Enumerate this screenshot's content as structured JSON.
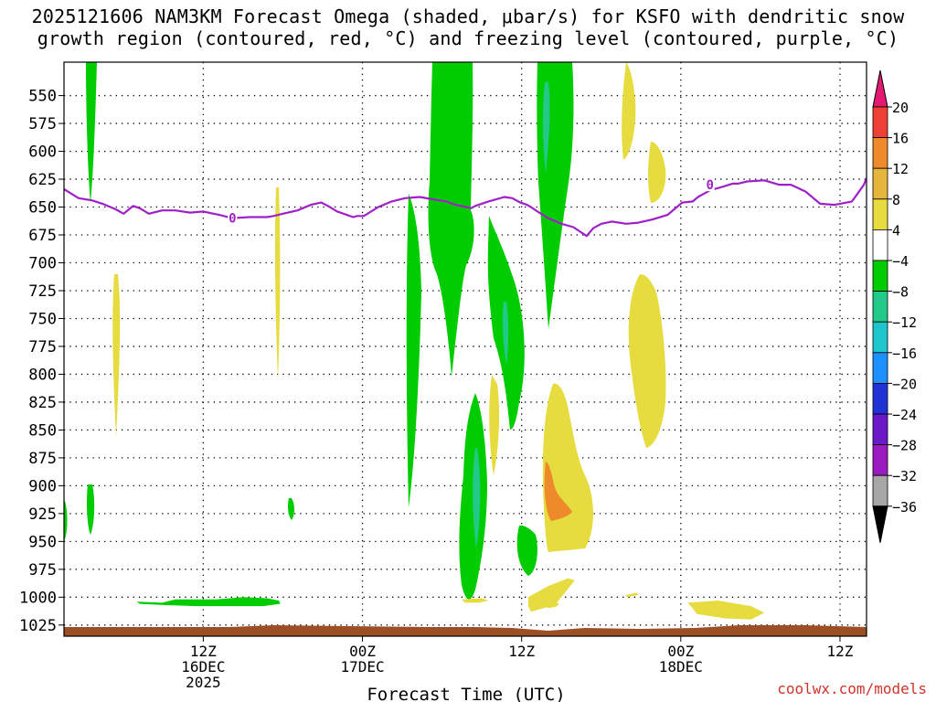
{
  "chart_data": {
    "type": "heatmap",
    "title_line1": "2025121606 NAM3KM Forecast Omega (shaded, μbar/s) for KSFO with dendritic snow",
    "title_line2": "growth region (contoured, red, °C) and freezing level (contoured, purple, °C)",
    "xlabel": "Forecast Time (UTC)",
    "xlim_hours": [
      -4.5,
      56
    ],
    "ylim_hpa": [
      520,
      1035
    ],
    "y_ticks": [
      550,
      575,
      600,
      625,
      650,
      675,
      700,
      725,
      750,
      775,
      800,
      825,
      850,
      875,
      900,
      925,
      950,
      975,
      1000,
      1025
    ],
    "x_ticks": [
      {
        "hour": 6,
        "line1": "12Z",
        "line2": "16DEC",
        "line3": "2025"
      },
      {
        "hour": 18,
        "line1": "00Z",
        "line2": "17DEC",
        "line3": ""
      },
      {
        "hour": 30,
        "line1": "12Z",
        "line2": "",
        "line3": ""
      },
      {
        "hour": 42,
        "line1": "00Z",
        "line2": "18DEC",
        "line3": ""
      },
      {
        "hour": 54,
        "line1": "12Z",
        "line2": "",
        "line3": ""
      }
    ],
    "colorbar": {
      "levels": [
        "20",
        "16",
        "12",
        "8",
        "4",
        "−4",
        "−8",
        "−12",
        "−16",
        "−20",
        "−24",
        "−28",
        "−32",
        "−36"
      ],
      "colors": [
        "#e31a72",
        "#ef4035",
        "#ee8a2b",
        "#e6b53c",
        "#e6dc40",
        "#ffffff",
        "#00cc00",
        "#22c989",
        "#1ec6cc",
        "#1e90ff",
        "#2233d6",
        "#6a18c8",
        "#9a1cc0",
        "#a6a6a6",
        "#000000"
      ]
    },
    "freezing_level": {
      "label": "0",
      "color": "#a020c8",
      "hours": [
        -4.5,
        -3.4,
        -2.4,
        -1.6,
        -0.6,
        0,
        0.4,
        0.7,
        1.2,
        1.9,
        2.9,
        3.9,
        5,
        6,
        7.2,
        8.2,
        9.5,
        10.8,
        11.3,
        12,
        13.1,
        14.1,
        14.9,
        15.4,
        16.1,
        17.3,
        17.6,
        18.1,
        19.2,
        20.2,
        21.2,
        22.3,
        23.3,
        24.3,
        25,
        26.2,
        26.5,
        27.5,
        28.7,
        29.3,
        29.9,
        30.4,
        30.7,
        31.2,
        32,
        33,
        33.9,
        34.9,
        35.4,
        36,
        36.8,
        37.9,
        38.8,
        39.9,
        41,
        41.8,
        42.1,
        42.9,
        43.3,
        44.2,
        45.1,
        45.9,
        46.3,
        47,
        48.3,
        49.4,
        50.3,
        51.4,
        52.5,
        53.6,
        54.9,
        55.2,
        55.8,
        56
      ],
      "hpa": [
        634,
        642,
        644,
        647,
        652,
        656,
        652,
        649,
        651,
        656,
        653,
        653,
        655,
        654,
        657,
        660,
        659,
        659,
        658,
        656,
        653,
        648,
        646,
        649,
        654,
        659,
        658,
        658,
        650,
        645,
        642,
        641,
        643,
        645,
        648,
        651,
        649,
        645,
        641,
        642,
        646,
        648,
        650,
        654,
        660,
        665,
        668,
        676,
        669,
        665,
        663,
        665,
        664,
        661,
        657,
        649,
        646,
        645,
        641,
        635,
        632,
        629,
        629,
        627,
        626,
        630,
        630,
        636,
        647,
        648,
        645,
        640,
        630,
        624
      ]
    },
    "omega_regions": [
      {
        "level": "4 to 8",
        "color": "#e6dc40",
        "hours": [
          42.5,
          44.8,
          47.3,
          48.3,
          47.3,
          45.3,
          43.2,
          42.9
        ],
        "hpa": [
          1005,
          1003,
          1008,
          1014,
          1020,
          1019,
          1015,
          1010
        ]
      },
      {
        "level": "-4 to -8",
        "color": "#00cc00",
        "hours": [
          1,
          2.9,
          3.9,
          5.5,
          7,
          9,
          10.8,
          11.7,
          11.8,
          10.5,
          8,
          5.5,
          3,
          1.2
        ],
        "hpa": [
          1004,
          1005,
          1002,
          1002,
          1002,
          1000,
          1001,
          1003,
          1006,
          1008,
          1008,
          1008,
          1007,
          1006
        ]
      },
      {
        "level": "4 to 8",
        "color": "#e6dc40",
        "hours": [
          30.7,
          32.5,
          33.4,
          34,
          33.5,
          32,
          30.5,
          30.5
        ],
        "hpa": [
          1013,
          1007,
          994,
          985,
          983,
          990,
          1000,
          1008
        ]
      },
      {
        "level": "4 to 8",
        "color": "#e6dc40",
        "hours": [
          37.9,
          38.7,
          38.8,
          38,
          37.8
        ],
        "hpa": [
          998,
          996,
          998,
          1000,
          999
        ]
      },
      {
        "level": "4 to 8",
        "color": "#e6dc40",
        "hours": [
          25.5,
          27,
          27.5,
          26.8,
          25.7
        ],
        "hpa": [
          1002,
          1001,
          1003,
          1005,
          1005
        ]
      }
    ]
  },
  "credit": "coolwx.com/models"
}
